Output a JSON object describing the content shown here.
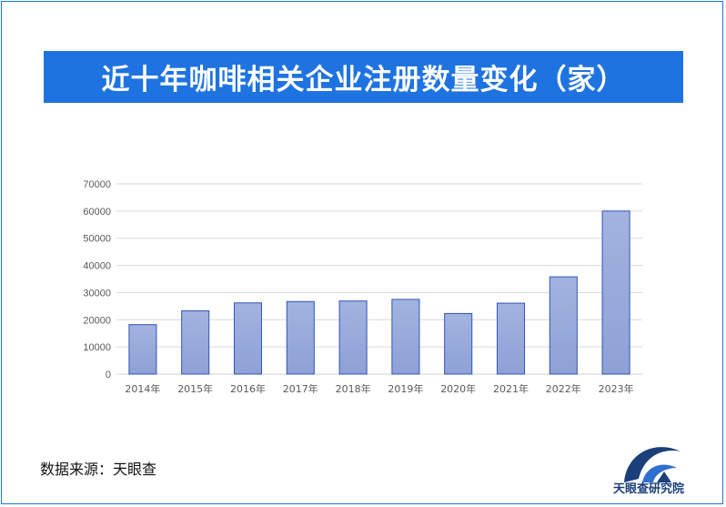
{
  "header": {
    "title": "近十年咖啡相关企业注册数量变化（家）"
  },
  "footer": {
    "source": "数据来源：天眼查",
    "logo_text": "天眼查研究院"
  },
  "colors": {
    "title_bar": "#1e73e0",
    "bar_fill_top": "#a3b3df",
    "bar_fill_bottom": "#8ea1d6",
    "bar_stroke": "#2f55b8",
    "grid": "#d9d9d9",
    "logo": "#1a3f7a"
  },
  "chart_data": {
    "type": "bar",
    "title": "近十年咖啡相关企业注册数量变化（家）",
    "xlabel": "",
    "ylabel": "",
    "categories": [
      "2014年",
      "2015年",
      "2016年",
      "2017年",
      "2018年",
      "2019年",
      "2020年",
      "2021年",
      "2022年",
      "2023年"
    ],
    "values": [
      18200,
      23300,
      26200,
      26700,
      26900,
      27500,
      22300,
      26100,
      35800,
      60000
    ],
    "ylim": [
      0,
      70000
    ],
    "yticks": [
      0,
      10000,
      20000,
      30000,
      40000,
      50000,
      60000,
      70000
    ],
    "grid": true,
    "legend": "none"
  }
}
